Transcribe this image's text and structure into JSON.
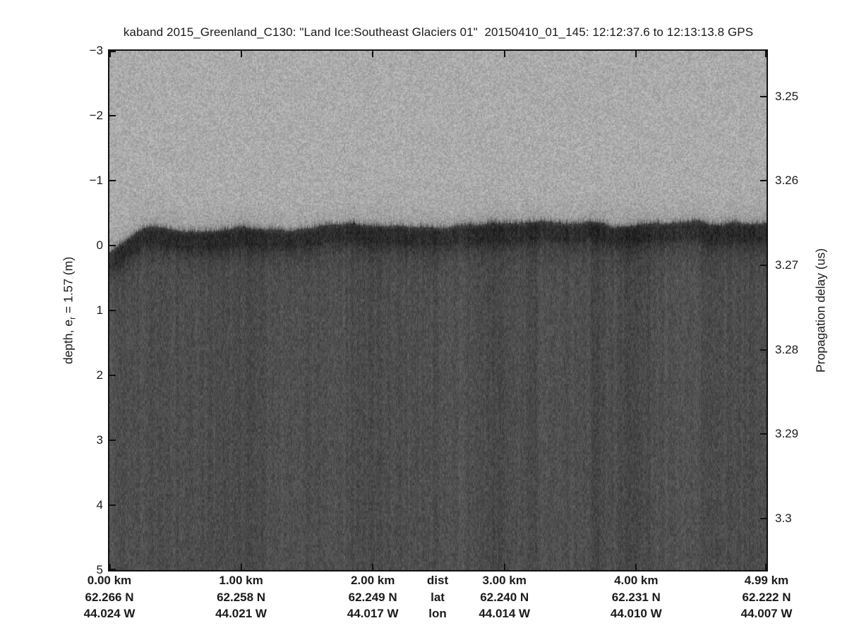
{
  "title": "kaband 2015_Greenland_C130: \"Land Ice:Southeast Glaciers 01\"  20150410_01_145: 12:12:37.6 to 12:13:13.8 GPS",
  "chart_data": {
    "type": "heatmap",
    "description": "Ka-band radar altimeter echogram over Southeast Greenland glaciers: bright grayscale speckle above the ice surface, a dark rough surface-return band just above 0 m depth (~3.267 us propagation delay), and darker speckle noise beneath it. No other reflectors visible.",
    "grid": false,
    "legend": false,
    "left_axis": {
      "label_pre": "depth, e",
      "label_sub": "r",
      "label_post": " = 1.57 (m)",
      "ticks": [
        -3,
        -2,
        -1,
        0,
        1,
        2,
        3,
        4,
        5
      ],
      "tick_labels": [
        "−3",
        "−2",
        "−1",
        "0",
        "1",
        "2",
        "3",
        "4",
        "5"
      ],
      "range": [
        -3,
        5
      ]
    },
    "right_axis": {
      "label": "Propagation delay (us)",
      "ticks": [
        3.25,
        3.26,
        3.27,
        3.28,
        3.29,
        3.3
      ],
      "tick_labels": [
        "3.25",
        "3.26",
        "3.27",
        "3.28",
        "3.29",
        "3.3"
      ],
      "range": [
        3.2446,
        3.3061
      ]
    },
    "x_axis": {
      "header_labels": [
        "dist",
        "lat",
        "lon"
      ],
      "header_frac": 0.4995,
      "range_km": [
        0,
        4.99
      ],
      "columns": [
        {
          "dist": "0.00 km",
          "lat": "62.266 N",
          "lon": "44.024 W",
          "frac": 0.0
        },
        {
          "dist": "1.00 km",
          "lat": "62.258 N",
          "lon": "44.021 W",
          "frac": 0.2004
        },
        {
          "dist": "2.00 km",
          "lat": "62.249 N",
          "lon": "44.017 W",
          "frac": 0.4008
        },
        {
          "dist": "3.00 km",
          "lat": "62.240 N",
          "lon": "44.014 W",
          "frac": 0.6012
        },
        {
          "dist": "4.00 km",
          "lat": "62.231 N",
          "lon": "44.010 W",
          "frac": 0.8016
        },
        {
          "dist": "4.99 km",
          "lat": "62.222 N",
          "lon": "44.007 W",
          "frac": 1.0
        }
      ]
    },
    "image": {
      "above_surface_gray": "#abaaaa",
      "surface_band_gray": "#2a2a2a",
      "below_surface_gray": "#4c4c4c",
      "surface_return_depth_m": -0.25,
      "surface_return_delay_us": 3.267
    }
  }
}
